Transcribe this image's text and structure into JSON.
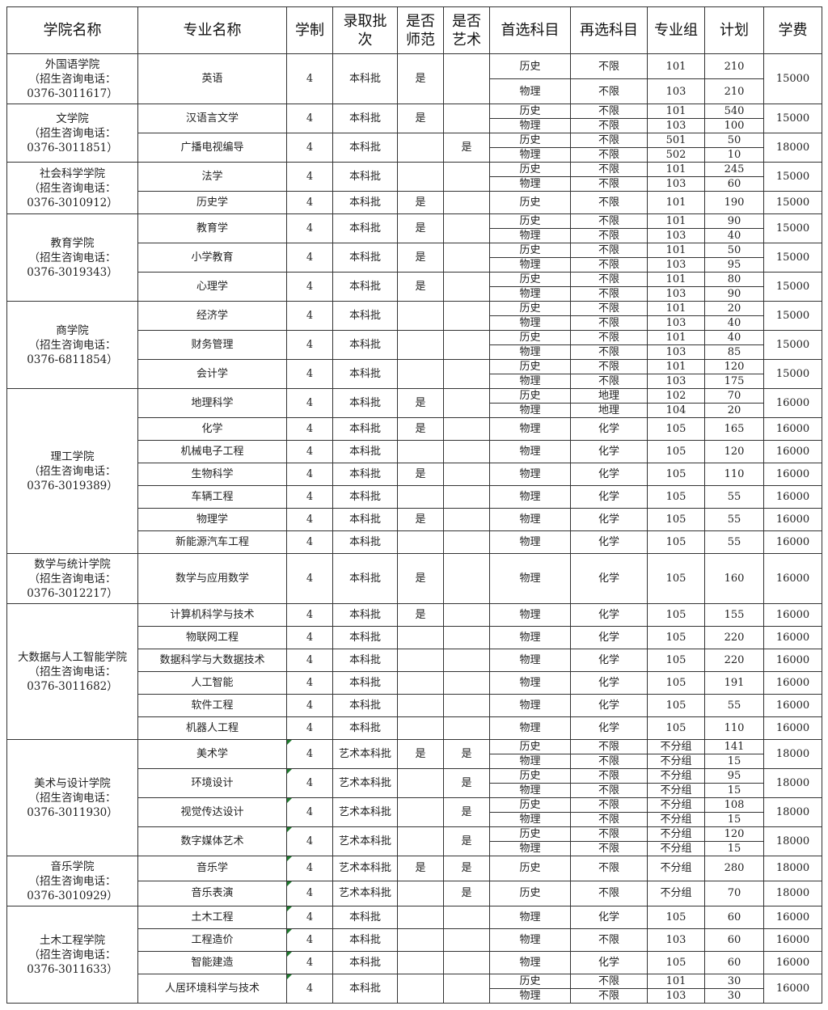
{
  "headers": [
    "学院名称",
    "专业名称",
    "学制",
    "录取批次",
    "是否师范",
    "是否艺术",
    "首选科目",
    "再选科目",
    "专业组",
    "计划",
    "学费"
  ],
  "colleges": [
    {
      "name": "外国语学院",
      "phone": "（招生咨询电话：",
      "phone_number": "0376-3011617）",
      "majors": [
        {
          "name": "英语",
          "years": "4",
          "batch": "本科批",
          "normal": "是",
          "art": "",
          "fee": "15000",
          "tracks": [
            {
              "first": "历史",
              "second": "不限",
              "group": "101",
              "plan": "210"
            },
            {
              "first": "物理",
              "second": "不限",
              "group": "103",
              "plan": "210"
            }
          ]
        }
      ]
    },
    {
      "name": "文学院",
      "phone": "（招生咨询电话：",
      "phone_number": "0376-3011851）",
      "majors": [
        {
          "name": "汉语言文学",
          "years": "4",
          "batch": "本科批",
          "normal": "是",
          "art": "",
          "fee": "15000",
          "tracks": [
            {
              "first": "历史",
              "second": "不限",
              "group": "101",
              "plan": "540"
            },
            {
              "first": "物理",
              "second": "不限",
              "group": "103",
              "plan": "100"
            }
          ]
        },
        {
          "name": "广播电视编导",
          "years": "4",
          "batch": "本科批",
          "normal": "",
          "art": "是",
          "fee": "18000",
          "tracks": [
            {
              "first": "历史",
              "second": "不限",
              "group": "501",
              "plan": "50"
            },
            {
              "first": "物理",
              "second": "不限",
              "group": "502",
              "plan": "10"
            }
          ]
        }
      ]
    },
    {
      "name": "社会科学学院",
      "phone": "（招生咨询电话：",
      "phone_number": "0376-3010912）",
      "majors": [
        {
          "name": "法学",
          "years": "4",
          "batch": "本科批",
          "normal": "",
          "art": "",
          "fee": "15000",
          "tracks": [
            {
              "first": "历史",
              "second": "不限",
              "group": "101",
              "plan": "245"
            },
            {
              "first": "物理",
              "second": "不限",
              "group": "103",
              "plan": "60"
            }
          ]
        },
        {
          "name": "历史学",
          "years": "4",
          "batch": "本科批",
          "normal": "是",
          "art": "",
          "fee": "15000",
          "tracks": [
            {
              "first": "历史",
              "second": "不限",
              "group": "101",
              "plan": "190"
            }
          ]
        }
      ]
    },
    {
      "name": "教育学院",
      "phone": "（招生咨询电话：",
      "phone_number": "0376-3019343）",
      "majors": [
        {
          "name": "教育学",
          "years": "4",
          "batch": "本科批",
          "normal": "是",
          "art": "",
          "fee": "15000",
          "tracks": [
            {
              "first": "历史",
              "second": "不限",
              "group": "101",
              "plan": "90"
            },
            {
              "first": "物理",
              "second": "不限",
              "group": "103",
              "plan": "40"
            }
          ]
        },
        {
          "name": "小学教育",
          "years": "4",
          "batch": "本科批",
          "normal": "是",
          "art": "",
          "fee": "15000",
          "tracks": [
            {
              "first": "历史",
              "second": "不限",
              "group": "101",
              "plan": "50"
            },
            {
              "first": "物理",
              "second": "不限",
              "group": "103",
              "plan": "95"
            }
          ]
        },
        {
          "name": "心理学",
          "years": "4",
          "batch": "本科批",
          "normal": "是",
          "art": "",
          "fee": "15000",
          "tracks": [
            {
              "first": "历史",
              "second": "不限",
              "group": "101",
              "plan": "80"
            },
            {
              "first": "物理",
              "second": "不限",
              "group": "103",
              "plan": "90"
            }
          ]
        }
      ]
    },
    {
      "name": "商学院",
      "phone": "（招生咨询电话：",
      "phone_number": "0376-6811854）",
      "majors": [
        {
          "name": "经济学",
          "years": "4",
          "batch": "本科批",
          "normal": "",
          "art": "",
          "fee": "15000",
          "tracks": [
            {
              "first": "历史",
              "second": "不限",
              "group": "101",
              "plan": "20"
            },
            {
              "first": "物理",
              "second": "不限",
              "group": "103",
              "plan": "40"
            }
          ]
        },
        {
          "name": "财务管理",
          "years": "4",
          "batch": "本科批",
          "normal": "",
          "art": "",
          "fee": "15000",
          "tracks": [
            {
              "first": "历史",
              "second": "不限",
              "group": "101",
              "plan": "40"
            },
            {
              "first": "物理",
              "second": "不限",
              "group": "103",
              "plan": "85"
            }
          ]
        },
        {
          "name": "会计学",
          "years": "4",
          "batch": "本科批",
          "normal": "",
          "art": "",
          "fee": "15000",
          "tracks": [
            {
              "first": "历史",
              "second": "不限",
              "group": "101",
              "plan": "120"
            },
            {
              "first": "物理",
              "second": "不限",
              "group": "103",
              "plan": "175"
            }
          ]
        }
      ]
    },
    {
      "name": "理工学院",
      "phone": "（招生咨询电话：",
      "phone_number": "0376-3019389）",
      "majors": [
        {
          "name": "地理科学",
          "years": "4",
          "batch": "本科批",
          "normal": "是",
          "art": "",
          "fee": "16000",
          "tracks": [
            {
              "first": "历史",
              "second": "地理",
              "group": "102",
              "plan": "70"
            },
            {
              "first": "物理",
              "second": "地理",
              "group": "104",
              "plan": "20"
            }
          ]
        },
        {
          "name": "化学",
          "years": "4",
          "batch": "本科批",
          "normal": "是",
          "art": "",
          "fee": "16000",
          "tracks": [
            {
              "first": "物理",
              "second": "化学",
              "group": "105",
              "plan": "165"
            }
          ]
        },
        {
          "name": "机械电子工程",
          "years": "4",
          "batch": "本科批",
          "normal": "",
          "art": "",
          "fee": "16000",
          "tracks": [
            {
              "first": "物理",
              "second": "化学",
              "group": "105",
              "plan": "120"
            }
          ]
        },
        {
          "name": "生物科学",
          "years": "4",
          "batch": "本科批",
          "normal": "是",
          "art": "",
          "fee": "16000",
          "tracks": [
            {
              "first": "物理",
              "second": "化学",
              "group": "105",
              "plan": "110"
            }
          ]
        },
        {
          "name": "车辆工程",
          "years": "4",
          "batch": "本科批",
          "normal": "",
          "art": "",
          "fee": "16000",
          "tracks": [
            {
              "first": "物理",
              "second": "化学",
              "group": "105",
              "plan": "55"
            }
          ]
        },
        {
          "name": "物理学",
          "years": "4",
          "batch": "本科批",
          "normal": "是",
          "art": "",
          "fee": "16000",
          "tracks": [
            {
              "first": "物理",
              "second": "化学",
              "group": "105",
              "plan": "55"
            }
          ]
        },
        {
          "name": "新能源汽车工程",
          "years": "4",
          "batch": "本科批",
          "normal": "",
          "art": "",
          "fee": "16000",
          "tracks": [
            {
              "first": "物理",
              "second": "化学",
              "group": "105",
              "plan": "55"
            }
          ]
        }
      ]
    },
    {
      "name": "数学与统计学院",
      "phone": "（招生咨询电话：",
      "phone_number": "0376-3012217）",
      "majors": [
        {
          "name": "数学与应用数学",
          "years": "4",
          "batch": "本科批",
          "normal": "是",
          "art": "",
          "fee": "16000",
          "tracks": [
            {
              "first": "物理",
              "second": "化学",
              "group": "105",
              "plan": "160"
            }
          ]
        }
      ]
    },
    {
      "name": "大数据与人工智能学院",
      "phone": "（招生咨询电话：",
      "phone_number": "0376-3011682）",
      "majors": [
        {
          "name": "计算机科学与技术",
          "years": "4",
          "batch": "本科批",
          "normal": "是",
          "art": "",
          "fee": "16000",
          "tracks": [
            {
              "first": "物理",
              "second": "化学",
              "group": "105",
              "plan": "155"
            }
          ]
        },
        {
          "name": "物联网工程",
          "years": "4",
          "batch": "本科批",
          "normal": "",
          "art": "",
          "fee": "16000",
          "tracks": [
            {
              "first": "物理",
              "second": "化学",
              "group": "105",
              "plan": "220"
            }
          ]
        },
        {
          "name": "数据科学与大数据技术",
          "years": "4",
          "batch": "本科批",
          "normal": "",
          "art": "",
          "fee": "16000",
          "tracks": [
            {
              "first": "物理",
              "second": "化学",
              "group": "105",
              "plan": "220"
            }
          ]
        },
        {
          "name": "人工智能",
          "years": "4",
          "batch": "本科批",
          "normal": "",
          "art": "",
          "fee": "16000",
          "tracks": [
            {
              "first": "物理",
              "second": "化学",
              "group": "105",
              "plan": "191"
            }
          ]
        },
        {
          "name": "软件工程",
          "years": "4",
          "batch": "本科批",
          "normal": "",
          "art": "",
          "fee": "16000",
          "tracks": [
            {
              "first": "物理",
              "second": "化学",
              "group": "105",
              "plan": "55"
            }
          ]
        },
        {
          "name": "机器人工程",
          "years": "4",
          "batch": "本科批",
          "normal": "",
          "art": "",
          "fee": "16000",
          "tracks": [
            {
              "first": "物理",
              "second": "化学",
              "group": "105",
              "plan": "110"
            }
          ]
        }
      ]
    },
    {
      "name": "美术与设计学院",
      "phone": "（招生咨询电话：",
      "phone_number": "0376-3011930）",
      "majors": [
        {
          "name": "美术学",
          "years": "4",
          "batch": "艺术本科批",
          "normal": "是",
          "art": "是",
          "fee": "18000",
          "flagged": true,
          "tracks": [
            {
              "first": "历史",
              "second": "不限",
              "group": "不分组",
              "plan": "141"
            },
            {
              "first": "物理",
              "second": "不限",
              "group": "不分组",
              "plan": "15"
            }
          ]
        },
        {
          "name": "环境设计",
          "years": "4",
          "batch": "艺术本科批",
          "normal": "",
          "art": "是",
          "fee": "18000",
          "flagged": true,
          "tracks": [
            {
              "first": "历史",
              "second": "不限",
              "group": "不分组",
              "plan": "95"
            },
            {
              "first": "物理",
              "second": "不限",
              "group": "不分组",
              "plan": "15"
            }
          ]
        },
        {
          "name": "视觉传达设计",
          "years": "4",
          "batch": "艺术本科批",
          "normal": "",
          "art": "是",
          "fee": "18000",
          "flagged": true,
          "tracks": [
            {
              "first": "历史",
              "second": "不限",
              "group": "不分组",
              "plan": "108"
            },
            {
              "first": "物理",
              "second": "不限",
              "group": "不分组",
              "plan": "15"
            }
          ]
        },
        {
          "name": "数字媒体艺术",
          "years": "4",
          "batch": "艺术本科批",
          "normal": "",
          "art": "是",
          "fee": "18000",
          "flagged": true,
          "tracks": [
            {
              "first": "历史",
              "second": "不限",
              "group": "不分组",
              "plan": "120"
            },
            {
              "first": "物理",
              "second": "不限",
              "group": "不分组",
              "plan": "15"
            }
          ]
        }
      ]
    },
    {
      "name": "音乐学院",
      "phone": "（招生咨询电话：",
      "phone_number": "0376-3010929）",
      "majors": [
        {
          "name": "音乐学",
          "years": "4",
          "batch": "艺术本科批",
          "normal": "是",
          "art": "是",
          "fee": "18000",
          "flagged": true,
          "tracks": [
            {
              "first": "历史",
              "second": "不限",
              "group": "不分组",
              "plan": "280"
            }
          ]
        },
        {
          "name": "音乐表演",
          "years": "4",
          "batch": "艺术本科批",
          "normal": "",
          "art": "是",
          "fee": "18000",
          "flagged": true,
          "tracks": [
            {
              "first": "历史",
              "second": "不限",
              "group": "不分组",
              "plan": "70"
            }
          ]
        }
      ]
    },
    {
      "name": "土木工程学院",
      "phone": "（招生咨询电话：",
      "phone_number": "0376-3011633）",
      "majors": [
        {
          "name": "土木工程",
          "years": "4",
          "batch": "本科批",
          "normal": "",
          "art": "",
          "fee": "16000",
          "flagged": true,
          "tracks": [
            {
              "first": "物理",
              "second": "化学",
              "group": "105",
              "plan": "60"
            }
          ]
        },
        {
          "name": "工程造价",
          "years": "4",
          "batch": "本科批",
          "normal": "",
          "art": "",
          "fee": "16000",
          "flagged": true,
          "tracks": [
            {
              "first": "物理",
              "second": "不限",
              "group": "103",
              "plan": "60"
            }
          ]
        },
        {
          "name": "智能建造",
          "years": "4",
          "batch": "本科批",
          "normal": "",
          "art": "",
          "fee": "16000",
          "flagged": true,
          "tracks": [
            {
              "first": "物理",
              "second": "化学",
              "group": "105",
              "plan": "60"
            }
          ]
        },
        {
          "name": "人居环境科学与技术",
          "years": "4",
          "batch": "本科批",
          "normal": "",
          "art": "",
          "fee": "16000",
          "flagged": true,
          "tracks": [
            {
              "first": "历史",
              "second": "不限",
              "group": "101",
              "plan": "30"
            },
            {
              "first": "物理",
              "second": "不限",
              "group": "103",
              "plan": "30"
            }
          ]
        }
      ]
    }
  ]
}
